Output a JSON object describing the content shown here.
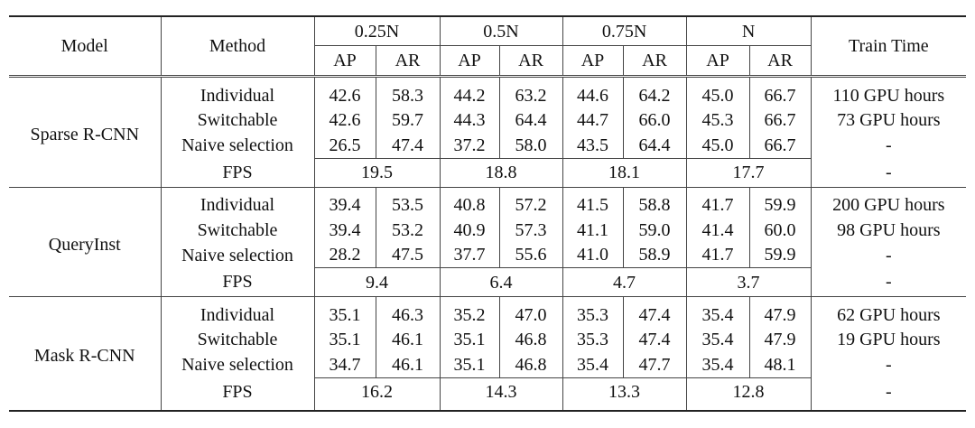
{
  "header": {
    "model": "Model",
    "method": "Method",
    "train_time": "Train Time",
    "groups": [
      {
        "label": "0.25N",
        "metrics": [
          "AP",
          "AR"
        ]
      },
      {
        "label": "0.5N",
        "metrics": [
          "AP",
          "AR"
        ]
      },
      {
        "label": "0.75N",
        "metrics": [
          "AP",
          "AR"
        ]
      },
      {
        "label": "N",
        "metrics": [
          "AP",
          "AR"
        ]
      }
    ]
  },
  "sections": [
    {
      "model": "Sparse R-CNN",
      "rows": [
        {
          "method": "Individual",
          "values": [
            "42.6",
            "58.3",
            "44.2",
            "63.2",
            "44.6",
            "64.2",
            "45.0",
            "66.7"
          ],
          "train_time": "110 GPU hours"
        },
        {
          "method": "Switchable",
          "values": [
            "42.6",
            "59.7",
            "44.3",
            "64.4",
            "44.7",
            "66.0",
            "45.3",
            "66.7"
          ],
          "train_time": "73 GPU hours"
        },
        {
          "method": "Naive selection",
          "values": [
            "26.5",
            "47.4",
            "37.2",
            "58.0",
            "43.5",
            "64.4",
            "45.0",
            "66.7"
          ],
          "train_time": "-"
        }
      ],
      "fps": {
        "label": "FPS",
        "values": [
          "19.5",
          "18.8",
          "18.1",
          "17.7"
        ],
        "train_time": "-"
      }
    },
    {
      "model": "QueryInst",
      "rows": [
        {
          "method": "Individual",
          "values": [
            "39.4",
            "53.5",
            "40.8",
            "57.2",
            "41.5",
            "58.8",
            "41.7",
            "59.9"
          ],
          "train_time": "200 GPU hours"
        },
        {
          "method": "Switchable",
          "values": [
            "39.4",
            "53.2",
            "40.9",
            "57.3",
            "41.1",
            "59.0",
            "41.4",
            "60.0"
          ],
          "train_time": "98 GPU hours"
        },
        {
          "method": "Naive selection",
          "values": [
            "28.2",
            "47.5",
            "37.7",
            "55.6",
            "41.0",
            "58.9",
            "41.7",
            "59.9"
          ],
          "train_time": "-"
        }
      ],
      "fps": {
        "label": "FPS",
        "values": [
          "9.4",
          "6.4",
          "4.7",
          "3.7"
        ],
        "train_time": "-"
      }
    },
    {
      "model": "Mask R-CNN",
      "rows": [
        {
          "method": "Individual",
          "values": [
            "35.1",
            "46.3",
            "35.2",
            "47.0",
            "35.3",
            "47.4",
            "35.4",
            "47.9"
          ],
          "train_time": "62 GPU hours"
        },
        {
          "method": "Switchable",
          "values": [
            "35.1",
            "46.1",
            "35.1",
            "46.8",
            "35.3",
            "47.4",
            "35.4",
            "47.9"
          ],
          "train_time": "19 GPU hours"
        },
        {
          "method": "Naive selection",
          "values": [
            "34.7",
            "46.1",
            "35.1",
            "46.8",
            "35.4",
            "47.7",
            "35.4",
            "48.1"
          ],
          "train_time": "-"
        }
      ],
      "fps": {
        "label": "FPS",
        "values": [
          "16.2",
          "14.3",
          "13.3",
          "12.8"
        ],
        "train_time": "-"
      }
    }
  ]
}
